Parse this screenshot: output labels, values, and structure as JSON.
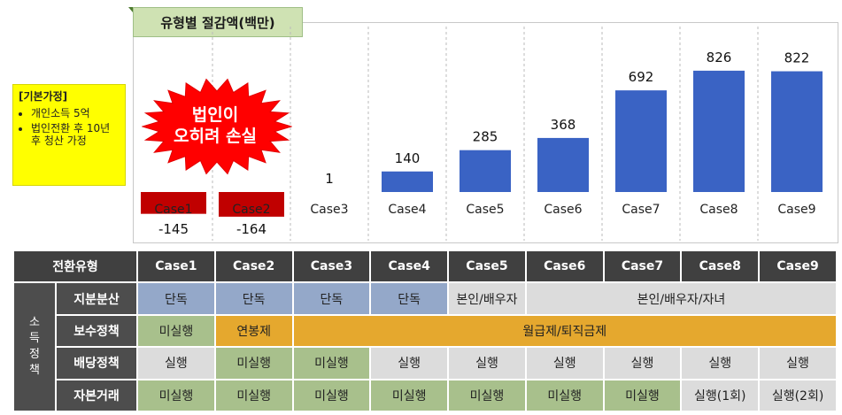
{
  "chart_data": {
    "type": "bar",
    "title": "유형별 절감액(백만)",
    "categories": [
      "Case1",
      "Case2",
      "Case3",
      "Case4",
      "Case5",
      "Case6",
      "Case7",
      "Case8",
      "Case9"
    ],
    "values": [
      -145,
      -164,
      1,
      140,
      285,
      368,
      692,
      826,
      822
    ],
    "data_labels": [
      "-145",
      "-164",
      "1",
      "140",
      "285",
      "368",
      "692",
      "826",
      "822"
    ],
    "colors": {
      "positive": "#3a63c4",
      "negative": "#c00000"
    },
    "ylim": [
      -200,
      900
    ],
    "grid": false
  },
  "assumption": {
    "title": "[기본가정]",
    "items": [
      "개인소득 5억",
      "법인전환 후 10년 후 청산 가정"
    ]
  },
  "callout": {
    "line1": "법인이",
    "line2": "오히려 손실",
    "color": "#ff0000"
  },
  "table": {
    "header_label": "전환유형",
    "columns": [
      "Case1",
      "Case2",
      "Case3",
      "Case4",
      "Case5",
      "Case6",
      "Case7",
      "Case8",
      "Case9"
    ],
    "side_label": "소득정책",
    "rows": {
      "equity": {
        "label": "지분분산",
        "c1": "단독",
        "c2": "단독",
        "c3": "단독",
        "c4": "단독",
        "c5": "본인/배우자",
        "c6_9": "본인/배우자/자녀"
      },
      "pay": {
        "label": "보수정책",
        "c1": "미실행",
        "c2": "연봉제",
        "c3_9": "월급제/퇴직금제"
      },
      "dividend": {
        "label": "배당정책",
        "values": [
          "실행",
          "미실행",
          "미실행",
          "실행",
          "실행",
          "실행",
          "실행",
          "실행",
          "실행"
        ]
      },
      "capital": {
        "label": "자본거래",
        "values": [
          "미실행",
          "미실행",
          "미실행",
          "미실행",
          "미실행",
          "미실행",
          "미실행",
          "실행(1회)",
          "실행(2회)"
        ]
      }
    }
  }
}
